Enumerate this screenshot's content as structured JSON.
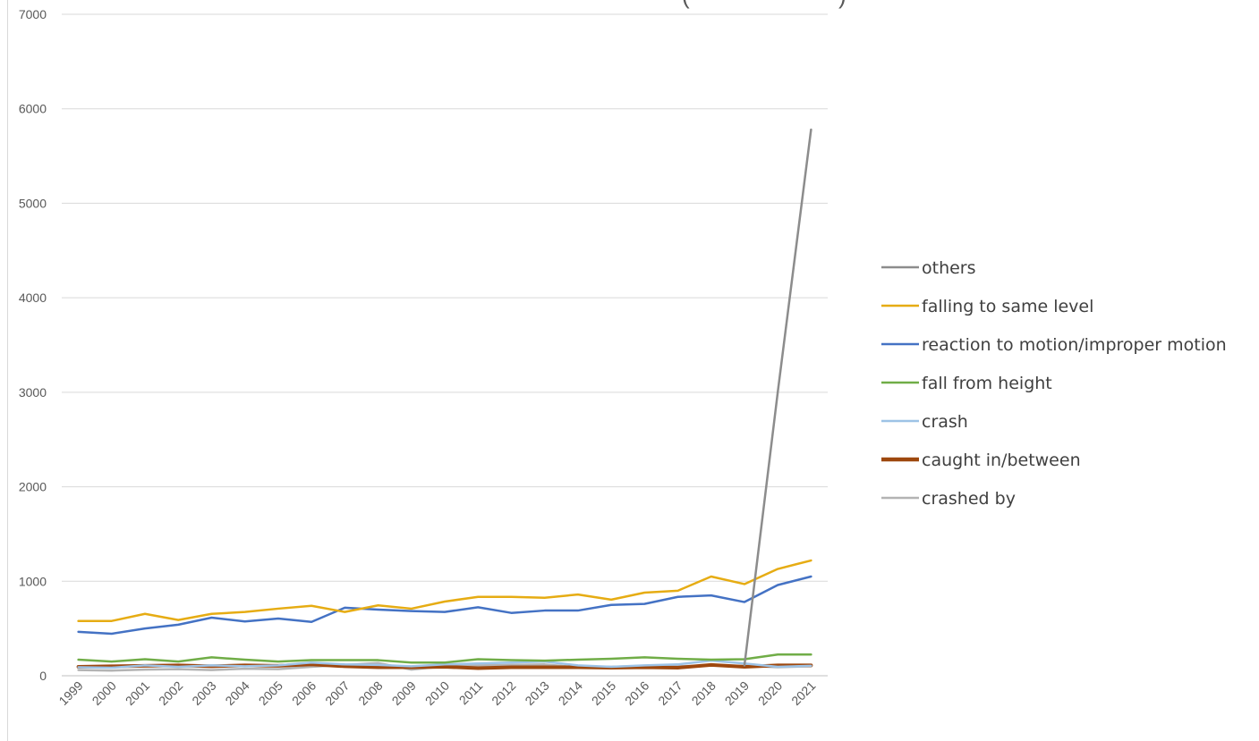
{
  "chart_data": {
    "type": "line",
    "title": "(",
    "title_suffix": ")",
    "xlabel": "",
    "ylabel": "",
    "x": [
      "1999",
      "2000",
      "2001",
      "2002",
      "2003",
      "2004",
      "2005",
      "2006",
      "2007",
      "2008",
      "2009",
      "2010",
      "2011",
      "2012",
      "2013",
      "2014",
      "2015",
      "2016",
      "2017",
      "2018",
      "2019",
      "2020",
      "2021"
    ],
    "yticks": [
      0,
      1000,
      2000,
      3000,
      4000,
      5000,
      6000,
      7000
    ],
    "ylim": [
      0,
      7000
    ],
    "grid": true,
    "legend_position": "right",
    "series": [
      {
        "name": "others",
        "color": "#8c8c8c",
        "values": [
          null,
          null,
          null,
          null,
          null,
          null,
          null,
          null,
          null,
          null,
          null,
          null,
          null,
          null,
          null,
          null,
          null,
          null,
          null,
          null,
          110,
          3000,
          5780
        ]
      },
      {
        "name": "falling to same level",
        "color": "#e6ac13",
        "values": [
          580,
          580,
          655,
          590,
          655,
          675,
          710,
          740,
          675,
          745,
          710,
          785,
          835,
          835,
          825,
          860,
          805,
          880,
          900,
          1050,
          970,
          1130,
          1220
        ]
      },
      {
        "name": "reaction to motion/improper motion",
        "color": "#4472c4",
        "values": [
          465,
          445,
          500,
          540,
          615,
          575,
          605,
          570,
          720,
          700,
          685,
          675,
          725,
          665,
          690,
          690,
          750,
          760,
          835,
          850,
          780,
          960,
          1050
        ]
      },
      {
        "name": "fall from height",
        "color": "#70ad47",
        "values": [
          170,
          150,
          175,
          150,
          195,
          170,
          150,
          165,
          165,
          165,
          140,
          140,
          175,
          165,
          160,
          170,
          180,
          195,
          180,
          170,
          175,
          225,
          225
        ]
      },
      {
        "name": "crash",
        "color": "#9dc3e6",
        "values": [
          90,
          85,
          110,
          95,
          110,
          100,
          110,
          140,
          120,
          115,
          100,
          120,
          130,
          140,
          150,
          110,
          95,
          110,
          120,
          160,
          130,
          95,
          105
        ]
      },
      {
        "name": "caught in/between",
        "color": "#9e480e",
        "values": [
          95,
          100,
          105,
          110,
          100,
          110,
          105,
          120,
          100,
          90,
          90,
          95,
          80,
          90,
          90,
          90,
          85,
          90,
          85,
          115,
          95,
          110,
          110
        ]
      },
      {
        "name": "crashed by",
        "color": "#b3b3b3",
        "values": [
          60,
          55,
          65,
          70,
          60,
          75,
          70,
          95,
          115,
          135,
          65,
          100,
          110,
          115,
          120,
          90,
          95,
          105,
          100,
          110,
          105,
          90,
          100
        ]
      }
    ]
  }
}
